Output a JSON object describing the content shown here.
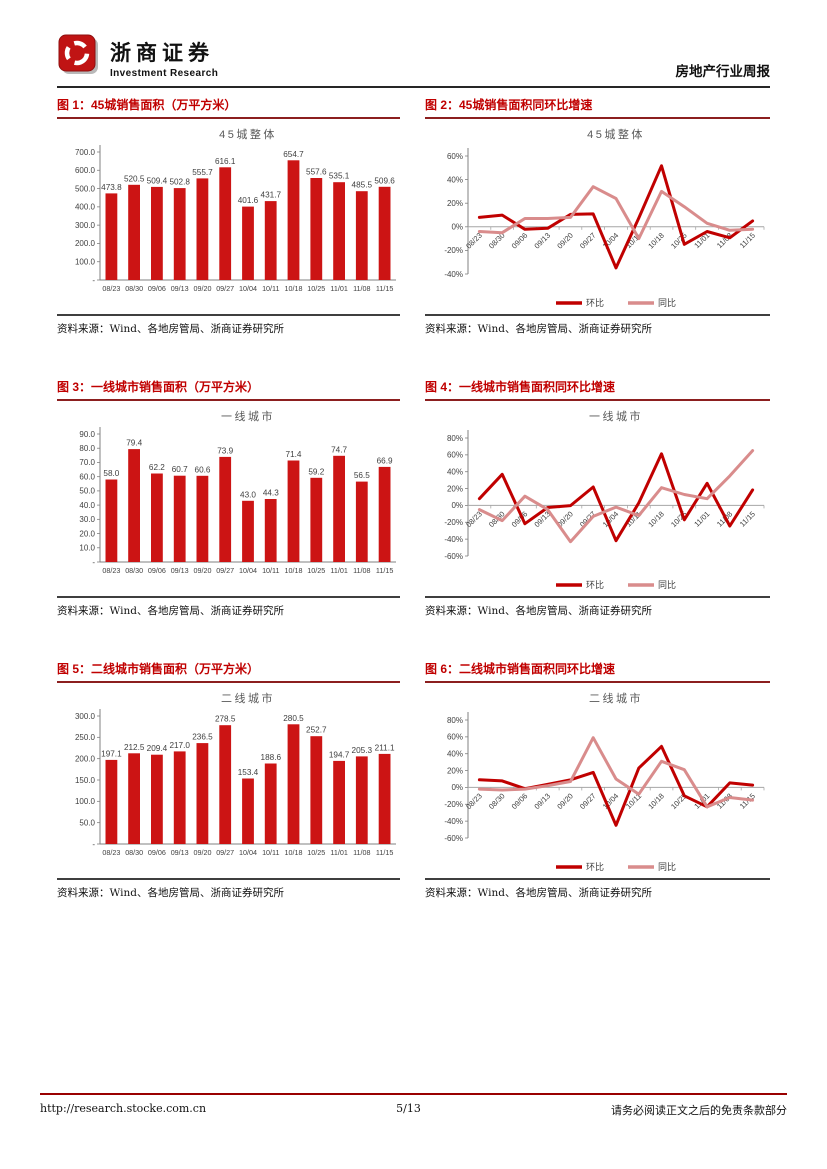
{
  "header": {
    "brand_cn": "浙商证券",
    "brand_en": "Investment Research",
    "report_type": "房地产行业周报"
  },
  "footer": {
    "url": "http://research.stocke.com.cn",
    "page_number": "5/13",
    "disclaimer": "请务必阅读正文之后的免责条款部分"
  },
  "source_note": "资料来源：Wind、各地房管局、浙商证券研究所",
  "colors": {
    "bar": "#cc1414",
    "mom_line": "#c00000",
    "yoy_line": "#d98c8c",
    "title_red": "#c00000",
    "chart_title_gray": "#595959",
    "axis_gray": "#808080",
    "label_gray": "#404040"
  },
  "figures": [
    {
      "label": "图 1：45城销售面积（万平方米）"
    },
    {
      "label": "图 2：45城销售面积同环比增速"
    },
    {
      "label": "图 3：一线城市销售面积（万平方米）"
    },
    {
      "label": "图 4：一线城市销售面积同环比增速"
    },
    {
      "label": "图 5：二线城市销售面积（万平方米）"
    },
    {
      "label": "图 6：二线城市销售面积同环比增速"
    }
  ],
  "chart_data": [
    {
      "type": "bar",
      "title": "45城整体",
      "categories": [
        "08/23",
        "08/30",
        "09/06",
        "09/13",
        "09/20",
        "09/27",
        "10/04",
        "10/11",
        "10/18",
        "10/25",
        "11/01",
        "11/08",
        "11/15"
      ],
      "values": [
        473.8,
        520.5,
        509.4,
        502.8,
        555.7,
        616.1,
        401.6,
        431.7,
        654.7,
        557.6,
        535.1,
        485.5,
        509.6
      ],
      "ylim": [
        0,
        700
      ],
      "ytick_step": 100,
      "grid": false,
      "data_labels": true
    },
    {
      "type": "line",
      "title": "45城整体",
      "categories": [
        "08/23",
        "08/30",
        "09/06",
        "09/13",
        "09/20",
        "09/27",
        "10/04",
        "10/11",
        "10/18",
        "10/25",
        "11/01",
        "11/08",
        "11/15"
      ],
      "series": [
        {
          "name": "环比",
          "values": [
            8,
            9.9,
            -2.1,
            -1.3,
            10.5,
            10.9,
            -34.8,
            7.5,
            51.7,
            -14.8,
            -4.0,
            -9.3,
            5.0
          ]
        },
        {
          "name": "同比",
          "values": [
            -4,
            -5,
            7,
            7,
            8,
            34,
            24,
            -10,
            30,
            17,
            3,
            -3,
            -2
          ]
        }
      ],
      "ylim": [
        -40,
        60
      ],
      "ytick_step": 20,
      "legend_position": "bottom",
      "grid": false
    },
    {
      "type": "bar",
      "title": "一线城市",
      "categories": [
        "08/23",
        "08/30",
        "09/06",
        "09/13",
        "09/20",
        "09/27",
        "10/04",
        "10/11",
        "10/18",
        "10/25",
        "11/01",
        "11/08",
        "11/15"
      ],
      "values": [
        58.0,
        79.4,
        62.2,
        60.7,
        60.6,
        73.9,
        43.0,
        44.3,
        71.4,
        59.2,
        74.7,
        56.5,
        66.9
      ],
      "ylim": [
        0,
        90
      ],
      "ytick_step": 10,
      "grid": false,
      "data_labels": true
    },
    {
      "type": "line",
      "title": "一线城市",
      "categories": [
        "08/23",
        "08/30",
        "09/06",
        "09/13",
        "09/20",
        "09/27",
        "10/04",
        "10/11",
        "10/18",
        "10/25",
        "11/01",
        "11/08",
        "11/15"
      ],
      "series": [
        {
          "name": "环比",
          "values": [
            8,
            36.9,
            -21.7,
            -2.4,
            -0.2,
            21.9,
            -41.8,
            3.0,
            61.2,
            -17.1,
            26.2,
            -24.4,
            18.4
          ]
        },
        {
          "name": "同比",
          "values": [
            -5,
            -18,
            11,
            -5,
            -43,
            -13,
            -2,
            -12,
            21,
            13,
            8,
            35,
            65
          ]
        }
      ],
      "ylim": [
        -60,
        80
      ],
      "ytick_step": 20,
      "legend_position": "bottom",
      "grid": false
    },
    {
      "type": "bar",
      "title": "二线城市",
      "categories": [
        "08/23",
        "08/30",
        "09/06",
        "09/13",
        "09/20",
        "09/27",
        "10/04",
        "10/11",
        "10/18",
        "10/25",
        "11/01",
        "11/08",
        "11/15"
      ],
      "values": [
        197.1,
        212.5,
        209.4,
        217.0,
        236.5,
        278.5,
        153.4,
        188.6,
        280.5,
        252.7,
        194.7,
        205.3,
        211.1
      ],
      "ylim": [
        0,
        300
      ],
      "ytick_step": 50,
      "grid": false,
      "data_labels": true
    },
    {
      "type": "line",
      "title": "二线城市",
      "categories": [
        "08/23",
        "08/30",
        "09/06",
        "09/13",
        "09/20",
        "09/27",
        "10/04",
        "10/11",
        "10/18",
        "10/25",
        "11/01",
        "11/08",
        "11/15"
      ],
      "series": [
        {
          "name": "环比",
          "values": [
            9,
            7.8,
            -1.5,
            3.6,
            9.0,
            17.8,
            -44.9,
            22.9,
            48.7,
            -9.9,
            -23.0,
            5.4,
            2.8
          ]
        },
        {
          "name": "同比",
          "values": [
            -2,
            -3,
            -2,
            2,
            7,
            59,
            10,
            -8,
            31,
            21,
            -23,
            -12,
            -15
          ]
        }
      ],
      "ylim": [
        -60,
        80
      ],
      "ytick_step": 20,
      "legend_position": "bottom",
      "grid": false
    }
  ]
}
